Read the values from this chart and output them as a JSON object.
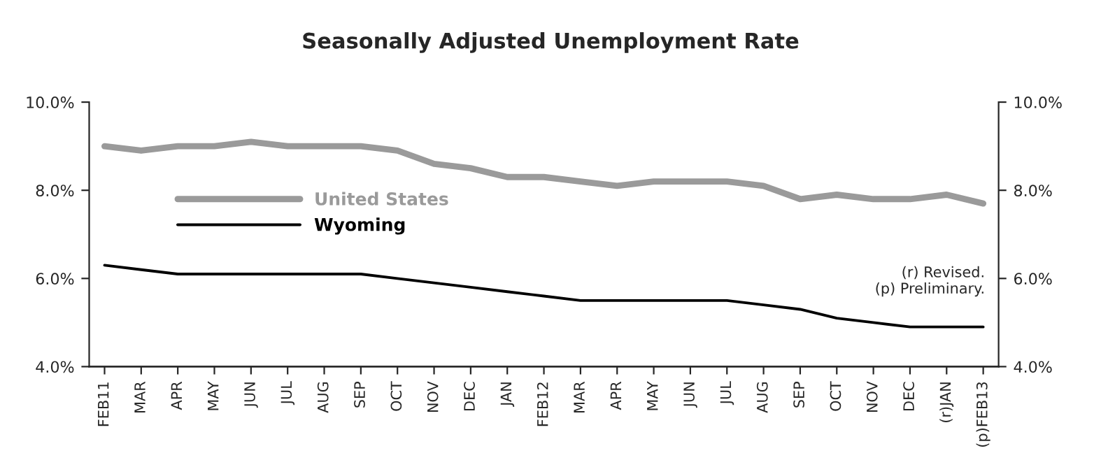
{
  "chart_data": {
    "type": "line",
    "title": "Seasonally Adjusted Unemployment Rate",
    "categories": [
      "FEB11",
      "MAR",
      "APR",
      "MAY",
      "JUN",
      "JUL",
      "AUG",
      "SEP",
      "OCT",
      "NOV",
      "DEC",
      "JAN",
      "FEB12",
      "MAR",
      "APR",
      "MAY",
      "JUN",
      "JUL",
      "AUG",
      "SEP",
      "OCT",
      "NOV",
      "DEC",
      "(r)JAN",
      "(p)FEB13"
    ],
    "series": [
      {
        "name": "United States",
        "color": "#9a9a9a",
        "values": [
          9.0,
          8.9,
          9.0,
          9.0,
          9.1,
          9.0,
          9.0,
          9.0,
          8.9,
          8.6,
          8.5,
          8.3,
          8.3,
          8.2,
          8.1,
          8.2,
          8.2,
          8.2,
          8.1,
          7.8,
          7.9,
          7.8,
          7.8,
          7.9,
          7.7
        ]
      },
      {
        "name": "Wyoming",
        "color": "#000000",
        "values": [
          6.3,
          6.2,
          6.1,
          6.1,
          6.1,
          6.1,
          6.1,
          6.1,
          6.0,
          5.9,
          5.8,
          5.7,
          5.6,
          5.5,
          5.5,
          5.5,
          5.5,
          5.5,
          5.4,
          5.3,
          5.1,
          5.0,
          4.9,
          4.9,
          4.9
        ]
      }
    ],
    "ylim": [
      4,
      10
    ],
    "yticks": [
      {
        "value": 4,
        "label": "4.0%"
      },
      {
        "value": 6,
        "label": "6.0%"
      },
      {
        "value": 8,
        "label": "8.0%"
      },
      {
        "value": 10,
        "label": "10.0%"
      }
    ],
    "y2lim": [
      4,
      10
    ],
    "y2ticks": [
      {
        "value": 4,
        "label": "4.0%"
      },
      {
        "value": 6,
        "label": "6.0%"
      },
      {
        "value": 8,
        "label": "8.0%"
      },
      {
        "value": 10,
        "label": "10.0%"
      }
    ],
    "annotations": [
      "(r) Revised.\n(p) Preliminary."
    ],
    "legend": "top left",
    "grid": false,
    "marker": "none",
    "line_style": "solid"
  }
}
